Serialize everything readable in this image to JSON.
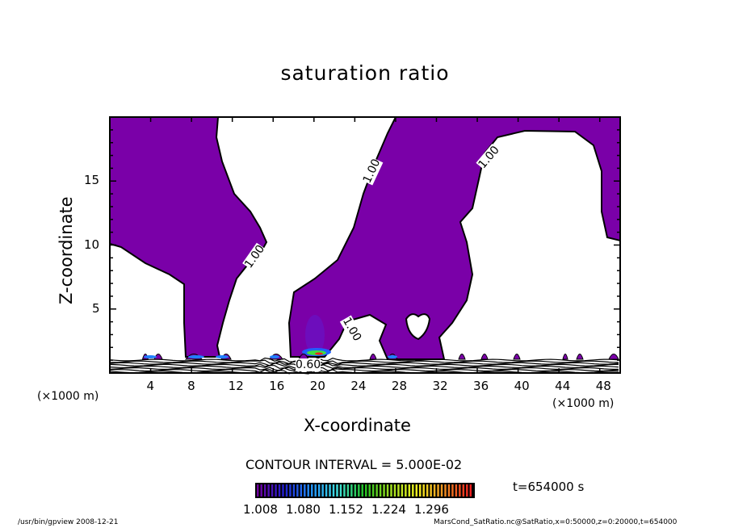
{
  "chart_data": {
    "type": "heatmap",
    "title": "saturation ratio",
    "xlabel": "X-coordinate",
    "ylabel": "Z-coordinate",
    "x_unit": "(×1000 m)",
    "x_unit_right": "(×1000 m)",
    "xlim": [
      0,
      50
    ],
    "ylim": [
      0,
      20
    ],
    "x_ticks": [
      "4",
      "8",
      "12",
      "16",
      "20",
      "24",
      "28",
      "32",
      "36",
      "40",
      "44",
      "48"
    ],
    "x_tick_values": [
      4,
      8,
      12,
      16,
      20,
      24,
      28,
      32,
      36,
      40,
      44,
      48
    ],
    "y_ticks": [
      "5",
      "10",
      "15"
    ],
    "y_tick_values": [
      5,
      10,
      15
    ],
    "contour_labels": [
      "1.00",
      "1.00",
      "1.00",
      "1.00",
      "0.60"
    ],
    "contour_interval_text": "CONTOUR INTERVAL = 5.000E-02",
    "colorbar": {
      "labels": [
        "1.008",
        "1.080",
        "1.152",
        "1.224",
        "1.296"
      ],
      "range": [
        1.0,
        1.33
      ],
      "colors": [
        "#7000a0",
        "#2020d0",
        "#2090ff",
        "#40e0e0",
        "#20c020",
        "#a0e020",
        "#f0f020",
        "#f09020",
        "#f02020"
      ]
    },
    "fill_color": "#7a00a8",
    "time_text": "t=654000 s",
    "footer_left": "/usr/bin/gpview   2008-12-21",
    "footer_right": "MarsCond_SatRatio.nc@SatRatio,x=0:50000,z=0:20000,t=654000"
  }
}
